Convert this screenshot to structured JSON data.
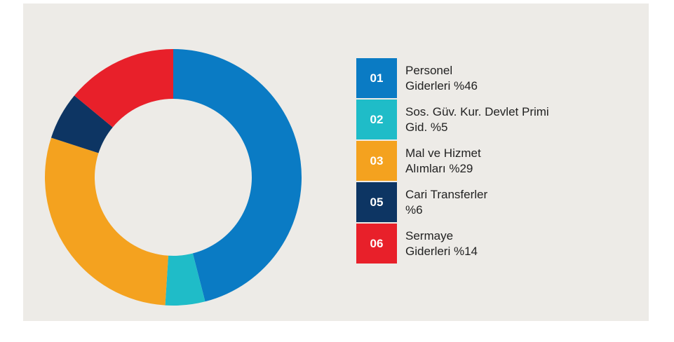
{
  "chart_data": {
    "type": "donut",
    "codes": [
      "01",
      "02",
      "03",
      "05",
      "06"
    ],
    "categories": [
      "Personel Giderleri",
      "Sos. Güv. Kur. Devlet Primi Gid.",
      "Mal ve Hizmet Alımları",
      "Cari Transferler",
      "Sermaye Giderleri"
    ],
    "values": [
      46,
      5,
      29,
      6,
      14
    ],
    "value_labels": [
      "%46",
      "%5",
      "%29",
      "%6",
      "%14"
    ],
    "colors": [
      "#0a7bc4",
      "#1fbcc8",
      "#f4a21f",
      "#0d3563",
      "#e8202a"
    ]
  }
}
